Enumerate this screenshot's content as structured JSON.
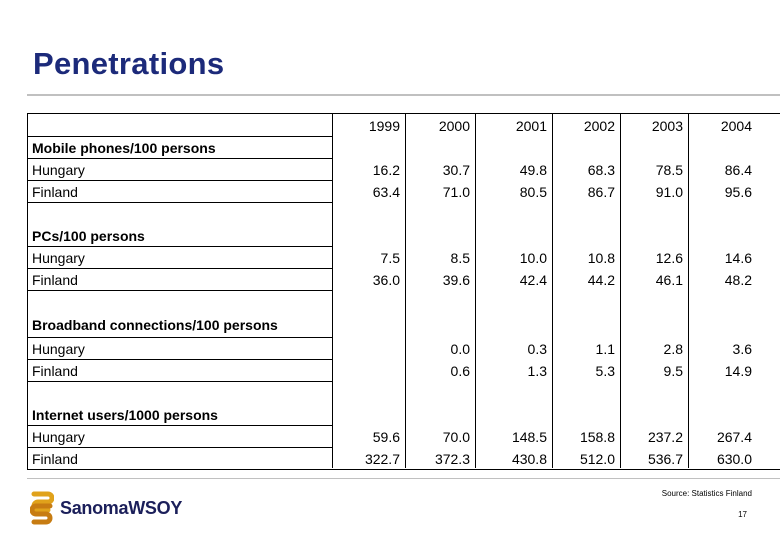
{
  "title": "Penetrations",
  "years": [
    "1999",
    "2000",
    "2001",
    "2002",
    "2003",
    "2004"
  ],
  "groups": [
    {
      "name": "Mobile phones/100 persons",
      "rows": [
        {
          "label": "Hungary",
          "values": [
            "16.2",
            "30.7",
            "49.8",
            "68.3",
            "78.5",
            "86.4"
          ]
        },
        {
          "label": "Finland",
          "values": [
            "63.4",
            "71.0",
            "80.5",
            "86.7",
            "91.0",
            "95.6"
          ]
        }
      ]
    },
    {
      "name": "PCs/100 persons",
      "rows": [
        {
          "label": "Hungary",
          "values": [
            "7.5",
            "8.5",
            "10.0",
            "10.8",
            "12.6",
            "14.6"
          ]
        },
        {
          "label": "Finland",
          "values": [
            "36.0",
            "39.6",
            "42.4",
            "44.2",
            "46.1",
            "48.2"
          ]
        }
      ]
    },
    {
      "name": "Broadband connections/100 persons",
      "rows": [
        {
          "label": "Hungary",
          "values": [
            "",
            "0.0",
            "0.3",
            "1.1",
            "2.8",
            "3.6"
          ]
        },
        {
          "label": "Finland",
          "values": [
            "",
            "0.6",
            "1.3",
            "5.3",
            "9.5",
            "14.9"
          ]
        }
      ]
    },
    {
      "name": "Internet users/1000 persons",
      "rows": [
        {
          "label": "Hungary",
          "values": [
            "59.6",
            "70.0",
            "148.5",
            "158.8",
            "237.2",
            "267.4"
          ]
        },
        {
          "label": "Finland",
          "values": [
            "322.7",
            "372.3",
            "430.8",
            "512.0",
            "536.7",
            "630.0"
          ]
        }
      ]
    }
  ],
  "footer": {
    "source": "Source: Statistics Finland",
    "page_number": "17",
    "logo_text": "SanomaWSOY",
    "logo_color": "#1b1f5a",
    "logo_accent": "#e0a21b"
  }
}
